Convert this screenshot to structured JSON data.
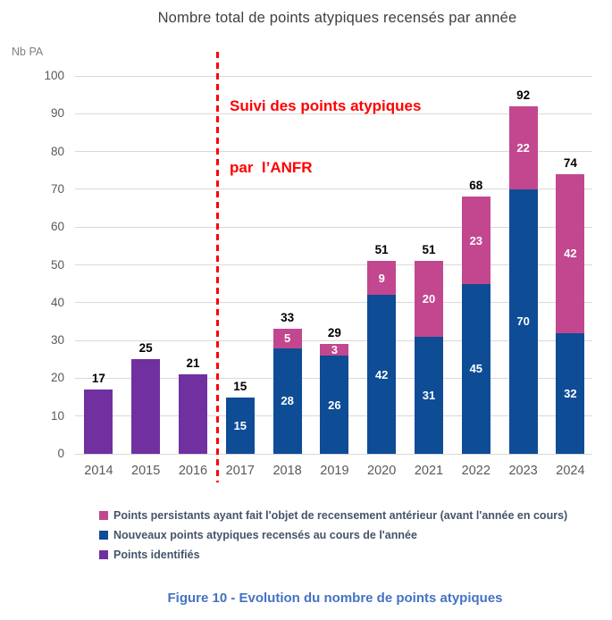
{
  "chart_data": {
    "type": "bar",
    "stacked": true,
    "title": "Nombre total de points atypiques recensés par année",
    "ylabel": "Nb PA",
    "xlabel": "",
    "ylim": [
      0,
      100
    ],
    "ytick_step": 10,
    "grid": true,
    "legend_position": "bottom",
    "categories": [
      "2014",
      "2015",
      "2016",
      "2017",
      "2018",
      "2019",
      "2020",
      "2021",
      "2022",
      "2023",
      "2024"
    ],
    "series": [
      {
        "name": "Points identifiés",
        "color": "#7030A0",
        "labels_inside": false,
        "values": [
          17,
          25,
          21,
          0,
          0,
          0,
          0,
          0,
          0,
          0,
          0
        ]
      },
      {
        "name": "Nouveaux points atypiques recensés au cours de l'année",
        "color": "#0E4C96",
        "labels_inside": true,
        "values": [
          0,
          0,
          0,
          15,
          28,
          26,
          42,
          31,
          45,
          70,
          32
        ]
      },
      {
        "name": "Points persistants ayant fait l'objet de recensement antérieur (avant l'année en cours)",
        "color": "#C2478F",
        "labels_inside": true,
        "values": [
          0,
          0,
          0,
          0,
          5,
          3,
          9,
          20,
          23,
          22,
          42
        ]
      }
    ],
    "totals": [
      17,
      25,
      21,
      15,
      33,
      29,
      51,
      51,
      68,
      92,
      74
    ],
    "annotation": {
      "line1": "Suivi des points atypiques",
      "line2": "par  l’ANFR",
      "divider_between": [
        "2016",
        "2017"
      ]
    },
    "legend_items": [
      {
        "label": "Points persistants ayant fait l'objet de recensement antérieur (avant l'année en cours)",
        "color": "#C2478F"
      },
      {
        "label": "Nouveaux points atypiques recensés au cours de l'année",
        "color": "#0E4C96"
      },
      {
        "label": "Points identifiés",
        "color": "#7030A0"
      }
    ]
  },
  "caption": "Figure 10 - Evolution du nombre de points atypiques",
  "colors": {
    "title": "#404040",
    "axis_labels": "#595959",
    "unit_label": "#7F7F7F",
    "grid": "#D9D9D9",
    "annotation_red": "#FF0000",
    "legend_text": "#44546A",
    "caption": "#4472C4",
    "segment_label": "#FFFFFF",
    "total_label": "#000000"
  }
}
